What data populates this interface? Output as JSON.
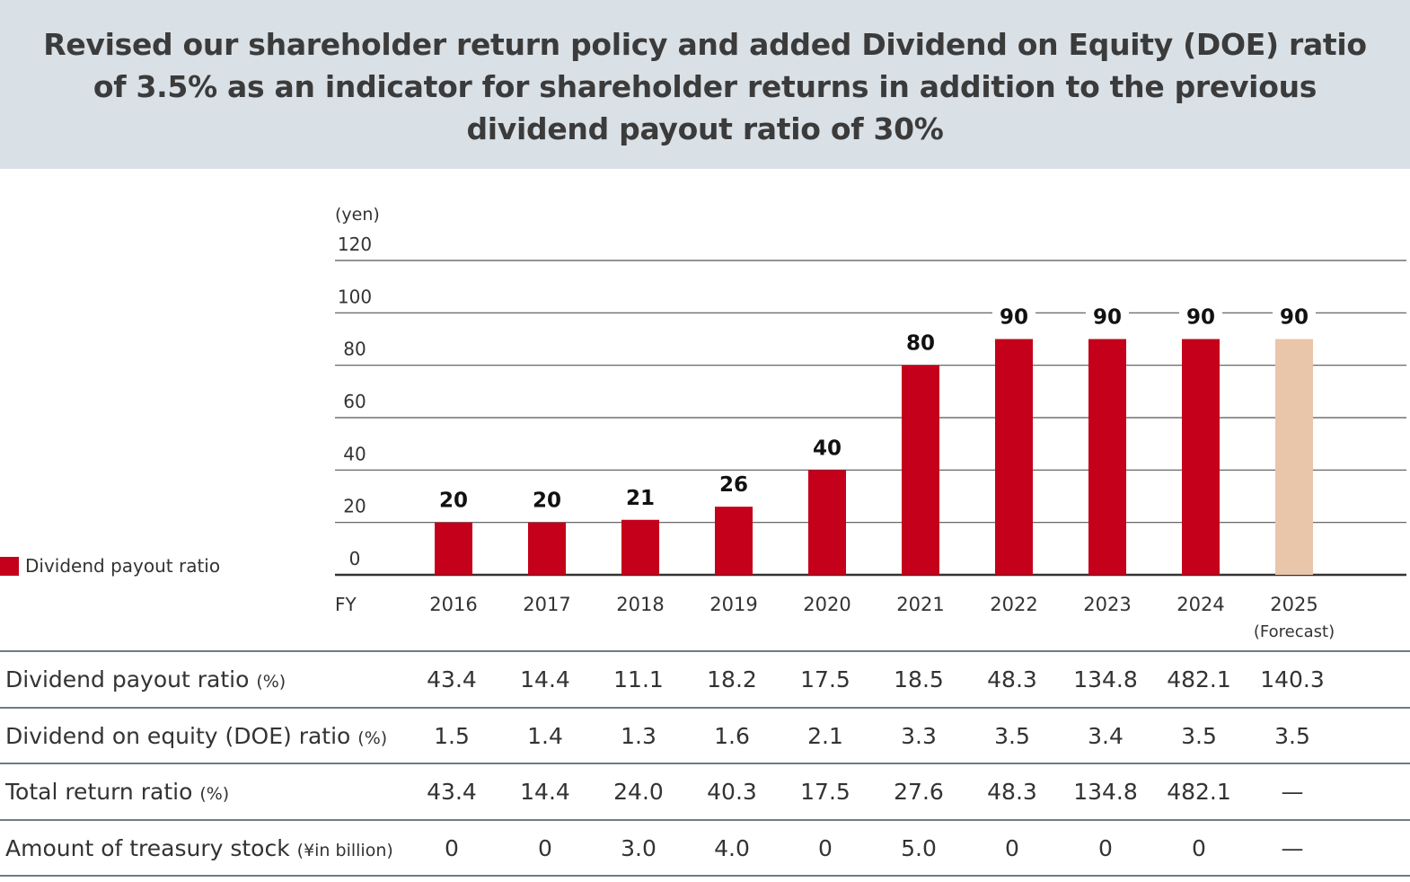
{
  "title": "Revised our shareholder return policy and added Dividend on Equity (DOE) ratio of 3.5% as an indicator for shareholder returns in addition to the previous dividend payout ratio of 30%",
  "colors": {
    "actual": "#c4001a",
    "forecast": "#e9c5aa",
    "banner": "#d9e0e6"
  },
  "chart_data": {
    "type": "bar",
    "ylabel": "(yen)",
    "xlabel": "FY",
    "ylim": [
      0,
      120
    ],
    "yticks": [
      "0",
      "20",
      "40",
      "60",
      "80",
      "100",
      "120"
    ],
    "grid": true,
    "categories": [
      "2016",
      "2017",
      "2018",
      "2019",
      "2020",
      "2021",
      "2022",
      "2023",
      "2024",
      "2025"
    ],
    "category_sublabels": [
      "",
      "",
      "",
      "",
      "",
      "",
      "",
      "",
      "",
      "(Forecast)"
    ],
    "values": [
      20,
      20,
      21,
      26,
      40,
      80,
      90,
      90,
      90,
      90
    ],
    "data_labels": [
      "20",
      "20",
      "21",
      "26",
      "40",
      "80",
      "90",
      "90",
      "90",
      "90"
    ],
    "forecast": [
      false,
      false,
      false,
      false,
      false,
      false,
      false,
      false,
      false,
      true
    ],
    "legend": {
      "label": "Dividend payout ratio",
      "placement": "left"
    }
  },
  "table": {
    "rows": [
      {
        "label": "Dividend payout ratio",
        "unit": "(%)",
        "values": [
          "43.4",
          "14.4",
          "11.1",
          "18.2",
          "17.5",
          "18.5",
          "48.3",
          "134.8",
          "482.1",
          "140.3"
        ]
      },
      {
        "label": "Dividend on equity (DOE) ratio",
        "unit": "(%)",
        "values": [
          "1.5",
          "1.4",
          "1.3",
          "1.6",
          "2.1",
          "3.3",
          "3.5",
          "3.4",
          "3.5",
          "3.5"
        ]
      },
      {
        "label": "Total return ratio",
        "unit": "(%)",
        "values": [
          "43.4",
          "14.4",
          "24.0",
          "40.3",
          "17.5",
          "27.6",
          "48.3",
          "134.8",
          "482.1",
          "—"
        ]
      },
      {
        "label": "Amount of treasury stock",
        "unit": "(¥in billion)",
        "values": [
          "0",
          "0",
          "3.0",
          "4.0",
          "0",
          "5.0",
          "0",
          "0",
          "0",
          "—"
        ]
      }
    ]
  }
}
